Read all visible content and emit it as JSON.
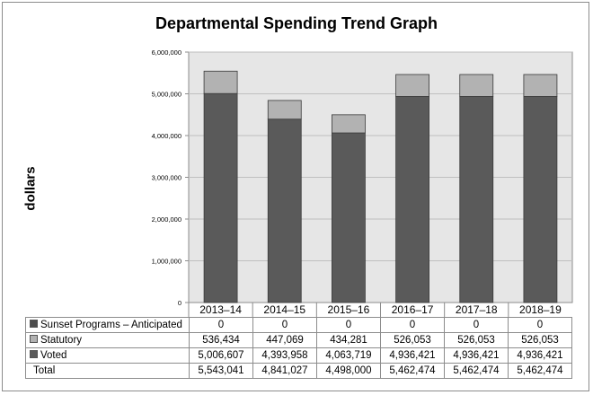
{
  "chart_data": {
    "type": "bar",
    "stacked": true,
    "title": "Departmental Spending Trend Graph",
    "xlabel": "",
    "ylabel": "dollars",
    "ylim": [
      0,
      6000000
    ],
    "yticks": [
      "0",
      "1,000,000",
      "2,000,000",
      "3,000,000",
      "4,000,000",
      "5,000,000",
      "6,000,000"
    ],
    "ytick_values": [
      0,
      1000000,
      2000000,
      3000000,
      4000000,
      5000000,
      6000000
    ],
    "grid": true,
    "legend": "data-table",
    "categories": [
      "2013–14",
      "2014–15",
      "2015–16",
      "2016–17",
      "2017–18",
      "2018–19"
    ],
    "series": [
      {
        "name": "Sunset Programs – Anticipated",
        "color": "#4d4d4d",
        "values": [
          0,
          0,
          0,
          0,
          0,
          0
        ],
        "labels": [
          "0",
          "0",
          "0",
          "0",
          "0",
          "0"
        ]
      },
      {
        "name": "Statutory",
        "color": "#b2b2b2",
        "values": [
          536434,
          447069,
          434281,
          526053,
          526053,
          526053
        ],
        "labels": [
          "536,434",
          "447,069",
          "434,281",
          "526,053",
          "526,053",
          "526,053"
        ]
      },
      {
        "name": "Voted",
        "color": "#5a5a5a",
        "values": [
          5006607,
          4393958,
          4063719,
          4936421,
          4936421,
          4936421
        ],
        "labels": [
          "5,006,607",
          "4,393,958",
          "4,063,719",
          "4,936,421",
          "4,936,421",
          "4,936,421"
        ]
      }
    ],
    "total": {
      "name": "Total",
      "values": [
        5543041,
        4841027,
        4498000,
        5462474,
        5462474,
        5462474
      ],
      "labels": [
        "5,543,041",
        "4,841,027",
        "4,498,000",
        "5,462,474",
        "5,462,474",
        "5,462,474"
      ]
    }
  }
}
